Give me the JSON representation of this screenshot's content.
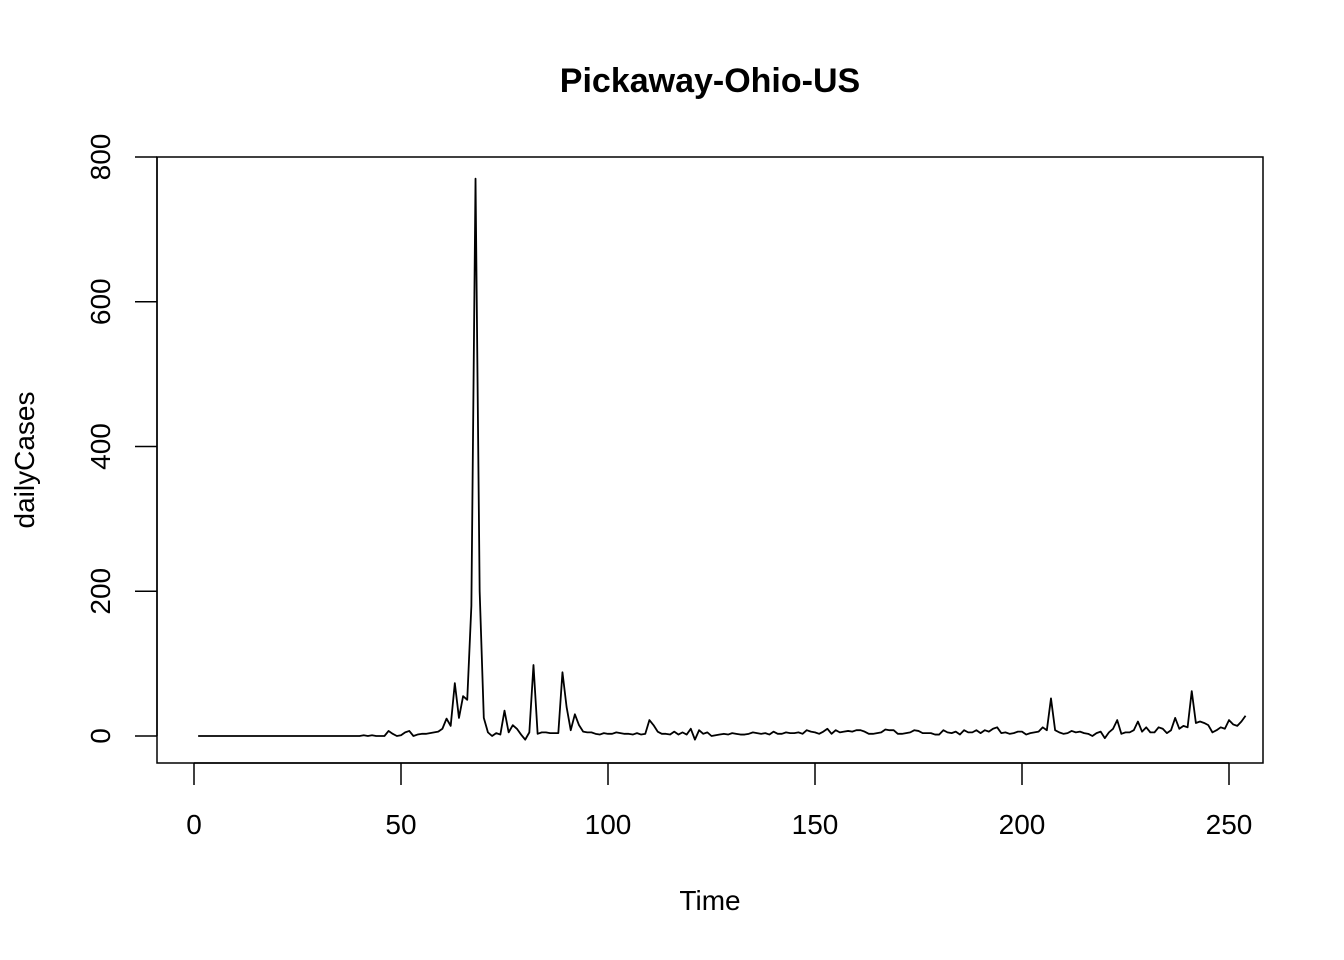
{
  "chart_data": {
    "type": "line",
    "title": "Pickaway-Ohio-US",
    "xlabel": "Time",
    "ylabel": "dailyCases",
    "xlim": [
      1,
      248
    ],
    "ylim": [
      0,
      800
    ],
    "x_ticks": [
      0,
      50,
      100,
      150,
      200,
      250
    ],
    "y_ticks": [
      0,
      200,
      400,
      600,
      800
    ],
    "grid": false,
    "legend": "none",
    "series": [
      {
        "color": "#000000",
        "values": [
          0,
          0,
          0,
          0,
          0,
          0,
          0,
          0,
          0,
          0,
          0,
          0,
          0,
          0,
          0,
          0,
          0,
          0,
          0,
          0,
          0,
          0,
          0,
          0,
          0,
          0,
          0,
          0,
          0,
          0,
          0,
          0,
          0,
          0,
          0,
          0,
          0,
          0,
          0,
          0,
          1,
          0,
          1,
          0,
          0,
          0,
          7,
          3,
          0,
          1,
          5,
          7,
          0,
          2,
          3,
          3,
          4,
          5,
          6,
          10,
          24,
          14,
          73,
          25,
          55,
          50,
          180,
          770,
          200,
          25,
          5,
          0,
          4,
          2,
          35,
          5,
          15,
          10,
          2,
          -5,
          5,
          98,
          3,
          5,
          5,
          4,
          4,
          4,
          88,
          40,
          8,
          30,
          15,
          6,
          5,
          5,
          3,
          2,
          4,
          3,
          3,
          5,
          4,
          3,
          3,
          2,
          4,
          2,
          3,
          22,
          15,
          6,
          3,
          3,
          2,
          6,
          2,
          5,
          2,
          10,
          -5,
          8,
          3,
          5,
          0,
          1,
          2,
          3,
          2,
          4,
          3,
          2,
          2,
          3,
          5,
          4,
          3,
          4,
          2,
          6,
          3,
          3,
          5,
          4,
          4,
          5,
          3,
          8,
          6,
          5,
          3,
          6,
          10,
          3,
          8,
          5,
          6,
          7,
          6,
          8,
          8,
          6,
          3,
          3,
          4,
          5,
          9,
          8,
          8,
          3,
          3,
          4,
          5,
          8,
          7,
          4,
          4,
          4,
          2,
          2,
          8,
          5,
          4,
          6,
          2,
          8,
          5,
          5,
          8,
          4,
          8,
          6,
          10,
          12,
          4,
          5,
          3,
          4,
          6,
          6,
          2,
          4,
          5,
          6,
          12,
          8,
          52,
          8,
          5,
          3,
          4,
          7,
          5,
          6,
          4,
          3,
          0,
          4,
          6,
          -3,
          5,
          10,
          22,
          3,
          5,
          5,
          8,
          20,
          6,
          12,
          5,
          5,
          12,
          10,
          4,
          8,
          25,
          10,
          14,
          12,
          62,
          18,
          20,
          18,
          15,
          5,
          8,
          12,
          10,
          22,
          16,
          14,
          20,
          28
        ]
      }
    ]
  }
}
